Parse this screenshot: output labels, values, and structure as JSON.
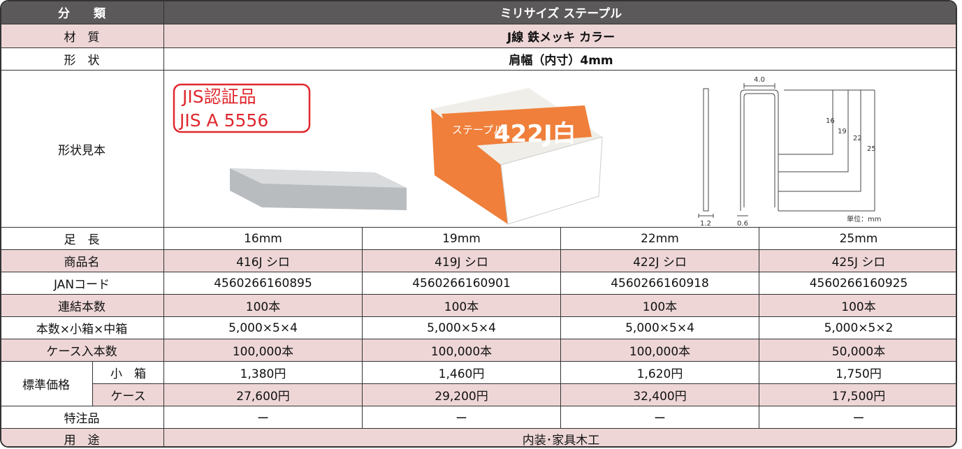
{
  "header": {
    "label": "分　　類",
    "value": "ミリサイズ ステープル"
  },
  "material": {
    "label": "材　質",
    "value": "J線 鉄メッキ カラー"
  },
  "shape": {
    "label": "形　状",
    "value": "肩幅（内寸）4mm"
  },
  "sample": {
    "label": "形状見本",
    "badge": [
      "JIS認証品",
      "JIS A 5556"
    ],
    "box_labels": [
      "ステープル",
      "422J白"
    ],
    "diagram": {
      "crown": "4.0",
      "lengths": [
        "16",
        "19",
        "22",
        "25"
      ],
      "wire": "1.2",
      "thickness": "0.6",
      "unit": "単位：mm"
    }
  },
  "spec_rows": [
    {
      "label": "足　長",
      "values": [
        "16mm",
        "19mm",
        "22mm",
        "25mm"
      ]
    },
    {
      "label": "商品名",
      "values": [
        "416J シロ",
        "419J シロ",
        "422J シロ",
        "425J シロ"
      ]
    },
    {
      "label": "JANコード",
      "values": [
        "4560266160895",
        "4560266160901",
        "4560266160918",
        "4560266160925"
      ]
    },
    {
      "label": "連結本数",
      "values": [
        "100本",
        "100本",
        "100本",
        "100本"
      ]
    },
    {
      "label": "本数×小箱×中箱",
      "values": [
        "5,000×5×4",
        "5,000×5×4",
        "5,000×5×4",
        "5,000×5×2"
      ]
    },
    {
      "label": "ケース入本数",
      "values": [
        "100,000本",
        "100,000本",
        "100,000本",
        "50,000本"
      ]
    }
  ],
  "price": {
    "label": "標準価格",
    "rows": [
      {
        "label": "小　箱",
        "values": [
          "1,380円",
          "1,460円",
          "1,620円",
          "1,750円"
        ]
      },
      {
        "label": "ケース",
        "values": [
          "27,600円",
          "29,200円",
          "32,400円",
          "17,500円"
        ]
      }
    ]
  },
  "special": {
    "label": "特注品",
    "values": [
      "ー",
      "ー",
      "ー",
      "ー"
    ]
  },
  "usage": {
    "label": "用　途",
    "value": "内装･家具木工"
  }
}
